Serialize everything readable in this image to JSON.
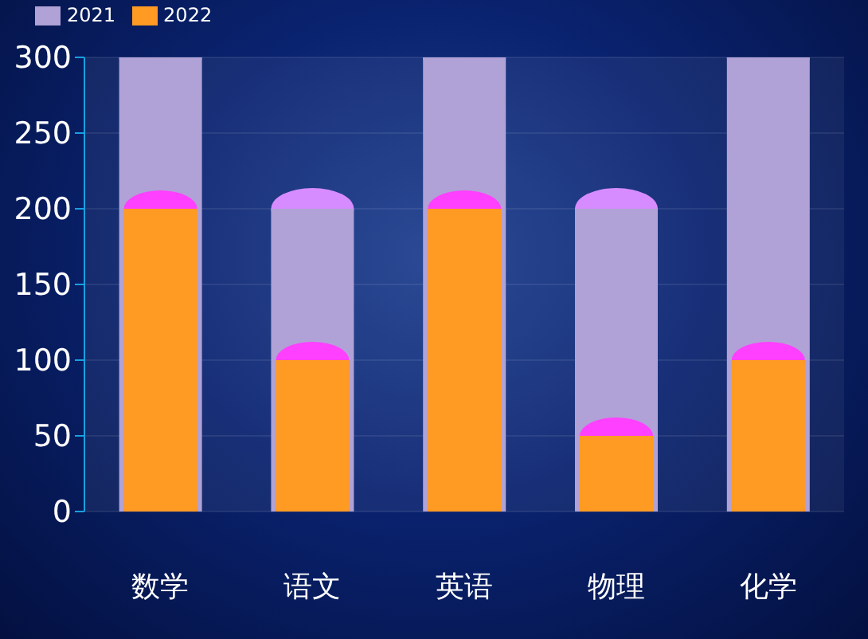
{
  "chart_data": {
    "type": "bar",
    "categories": [
      "数学",
      "语文",
      "英语",
      "物理",
      "化学"
    ],
    "series": [
      {
        "name": "2021",
        "color": "#b0a2d6",
        "values": [
          300,
          200,
          300,
          200,
          300
        ]
      },
      {
        "name": "2022",
        "color": "#ff9a22",
        "values": [
          200,
          100,
          200,
          50,
          100
        ]
      }
    ],
    "ylim": [
      0,
      300
    ],
    "yticks": [
      0,
      50,
      100,
      150,
      200,
      250,
      300
    ],
    "grid": "y",
    "legend": "top left"
  }
}
